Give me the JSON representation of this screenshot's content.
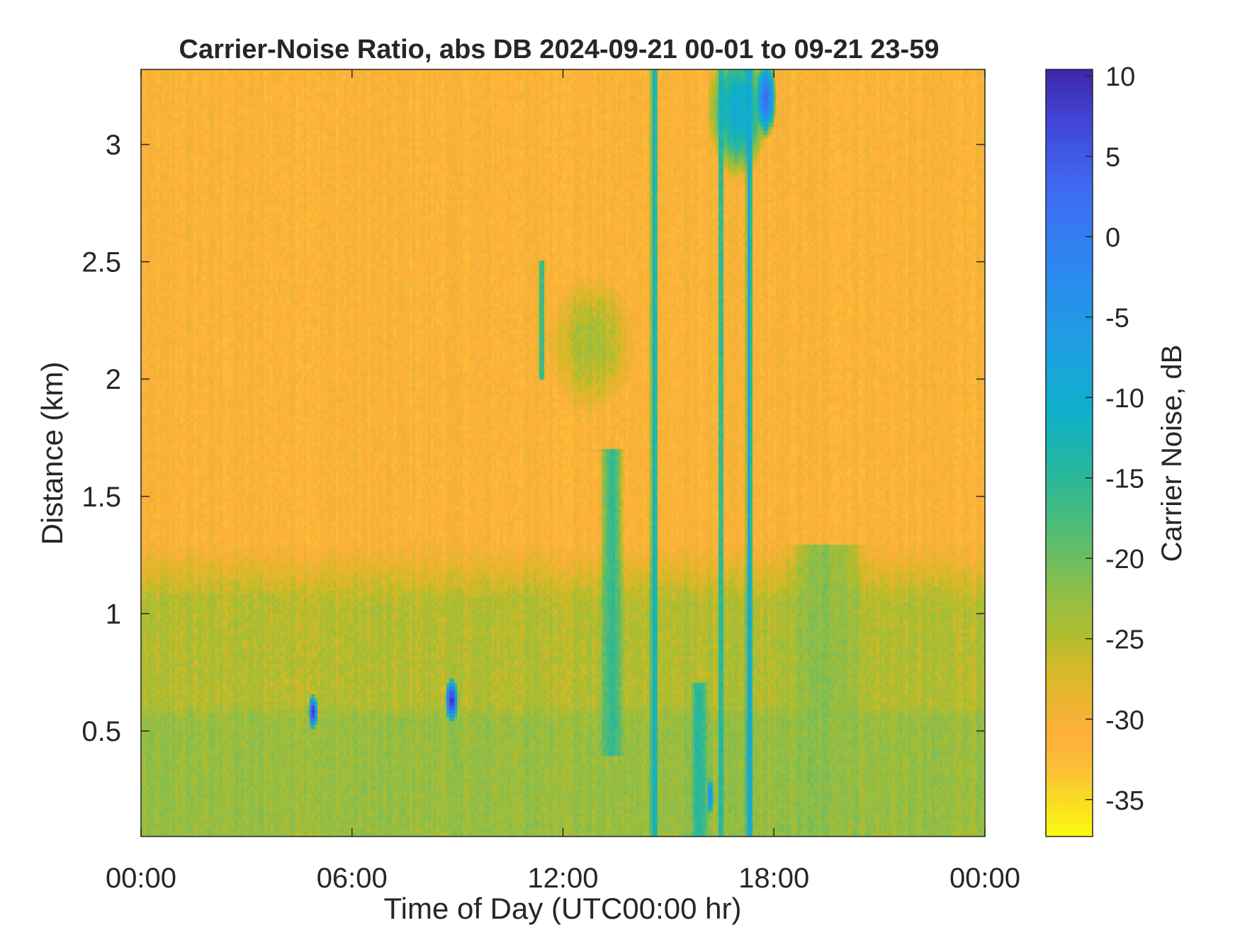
{
  "chart_data": {
    "type": "heatmap",
    "title": "Carrier-Noise Ratio, abs DB 2024-09-21 00-01 to 09-21 23-59",
    "xlabel": "Time of Day (UTC00:00 hr)",
    "ylabel": "Distance (km)",
    "colorbar_label": "Carrier Noise, dB",
    "x_range_hours": [
      0,
      24
    ],
    "x_ticks": [
      {
        "hours": 0,
        "label": "00:00"
      },
      {
        "hours": 6,
        "label": "06:00"
      },
      {
        "hours": 12,
        "label": "12:00"
      },
      {
        "hours": 18,
        "label": "18:00"
      },
      {
        "hours": 24,
        "label": "00:00"
      }
    ],
    "y_range_km": [
      0.05,
      3.32
    ],
    "y_ticks": [
      {
        "km": 0.5,
        "label": "0.5"
      },
      {
        "km": 1,
        "label": "1"
      },
      {
        "km": 1.5,
        "label": "1.5"
      },
      {
        "km": 2,
        "label": "2"
      },
      {
        "km": 2.5,
        "label": "2.5"
      },
      {
        "km": 3,
        "label": "3"
      }
    ],
    "color_range_db": [
      -37.3,
      10.4
    ],
    "color_ticks": [
      {
        "db": 10,
        "label": "10"
      },
      {
        "db": 5,
        "label": "5"
      },
      {
        "db": 0,
        "label": "0"
      },
      {
        "db": -5,
        "label": "-5"
      },
      {
        "db": -10,
        "label": "-10"
      },
      {
        "db": -15,
        "label": "-15"
      },
      {
        "db": -20,
        "label": "-20"
      },
      {
        "db": -25,
        "label": "-25"
      },
      {
        "db": -30,
        "label": "-30"
      },
      {
        "db": -35,
        "label": "-35"
      }
    ],
    "colormap": [
      "#f9fb0e",
      "#fbbf36",
      "#ffb03b",
      "#d7b928",
      "#b2bd2e",
      "#8dbe4a",
      "#5bbd6c",
      "#2ab89a",
      "#0fb0c9",
      "#1ea0e0",
      "#2c88f0",
      "#3f6bf2",
      "#4147d8",
      "#3e26a8"
    ],
    "colormap_stops_db": [
      -37.3,
      -33,
      -31,
      -27,
      -25,
      -22,
      -19,
      -15,
      -11,
      -7,
      -2,
      3,
      7,
      10.4
    ],
    "background_db": -31,
    "features": [
      {
        "kind": "band",
        "t0": 0,
        "t1": 24,
        "d0": 0.05,
        "d1": 1.3,
        "db": -25
      },
      {
        "kind": "band",
        "t0": 0,
        "t1": 24,
        "d0": 0.05,
        "d1": 0.8,
        "db": -23
      },
      {
        "kind": "blob",
        "t": 4.9,
        "d": 0.58,
        "rt": 0.15,
        "rd": 0.08,
        "db": 8
      },
      {
        "kind": "blob",
        "t": 8.85,
        "d": 0.63,
        "rt": 0.2,
        "rd": 0.1,
        "db": 8
      },
      {
        "kind": "blob",
        "t": 12.8,
        "d": 2.15,
        "rt": 1.3,
        "rd": 0.3,
        "db": -24
      },
      {
        "kind": "streak",
        "t": 11.4,
        "d0": 2.0,
        "d1": 2.5,
        "w": 0.12,
        "db": -15
      },
      {
        "kind": "streak",
        "t": 13.4,
        "d0": 0.4,
        "d1": 1.7,
        "w": 0.35,
        "db": -16
      },
      {
        "kind": "streak",
        "t": 14.6,
        "d0": 0.05,
        "d1": 3.32,
        "w": 0.12,
        "db": -10
      },
      {
        "kind": "streak",
        "t": 16.5,
        "d0": 0.05,
        "d1": 3.32,
        "w": 0.1,
        "db": -13
      },
      {
        "kind": "streak",
        "t": 17.3,
        "d0": 0.05,
        "d1": 3.32,
        "w": 0.1,
        "db": -6
      },
      {
        "kind": "streak",
        "t": 15.9,
        "d0": 0.05,
        "d1": 0.7,
        "w": 0.25,
        "db": -14
      },
      {
        "kind": "blob",
        "t": 17.0,
        "d": 3.15,
        "rt": 0.9,
        "rd": 0.3,
        "db": -10
      },
      {
        "kind": "blob",
        "t": 17.8,
        "d": 3.2,
        "rt": 0.3,
        "rd": 0.18,
        "db": 2
      },
      {
        "kind": "blob",
        "t": 16.2,
        "d": 0.22,
        "rt": 0.12,
        "rd": 0.08,
        "db": -4
      },
      {
        "kind": "streak",
        "t": 19.5,
        "d0": 0.05,
        "d1": 1.3,
        "w": 1.2,
        "db": -22
      }
    ]
  }
}
